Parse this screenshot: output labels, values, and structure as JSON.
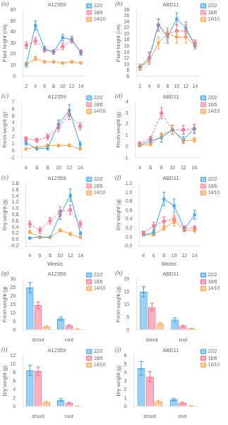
{
  "chart_data": [
    {
      "type": "line",
      "panel_label": "(a)",
      "title": "A12359",
      "ylabel": "Plant height (cm)",
      "x": [
        2,
        4,
        6,
        8,
        10,
        12,
        14
      ],
      "xlim": [
        1.2,
        14.8
      ],
      "xticks": [
        2,
        4,
        6,
        8,
        10,
        12,
        14
      ],
      "ylim": [
        0,
        60
      ],
      "yticks": [
        0,
        10,
        20,
        30,
        40,
        50,
        60
      ],
      "series": [
        {
          "name": "22/2",
          "values": [
            10.5,
            46,
            25,
            22,
            35,
            33,
            21
          ],
          "errors": [
            2,
            4,
            2,
            2,
            3,
            3,
            2
          ],
          "marker": "square",
          "line_style": "solid"
        },
        {
          "name": "18/6",
          "values": [
            28,
            32,
            24,
            22,
            27,
            33,
            22
          ],
          "errors": [
            3,
            3,
            2,
            2,
            3,
            2,
            2
          ],
          "marker": "circle",
          "line_style": "dashed"
        },
        {
          "name": "14/10",
          "values": [
            11,
            16,
            13,
            13,
            12,
            13,
            12
          ],
          "errors": [
            1,
            2,
            1,
            1,
            1,
            1,
            1
          ],
          "marker": "square",
          "line_style": "solid"
        }
      ],
      "grid": false,
      "legend": "right"
    },
    {
      "type": "line",
      "panel_label": "(b)",
      "title": "ABD11",
      "ylabel": "Plant height (cm)",
      "x": [
        2,
        4,
        6,
        8,
        10,
        12,
        14
      ],
      "xlim": [
        1.2,
        14.8
      ],
      "xticks": [
        2,
        4,
        6,
        8,
        10,
        12,
        14
      ],
      "ylim": [
        6,
        28
      ],
      "yticks": [
        6,
        8,
        10,
        12,
        14,
        16,
        18,
        20,
        22,
        24,
        26,
        28
      ],
      "series": [
        {
          "name": "22/2",
          "values": [
            9,
            12,
            23,
            19,
            25,
            22,
            16
          ],
          "errors": [
            1,
            2,
            2,
            2,
            2,
            2,
            1
          ],
          "marker": "square",
          "line_style": "solid"
        },
        {
          "name": "18/6",
          "values": [
            9,
            12,
            23,
            20,
            21,
            21,
            17
          ],
          "errors": [
            1,
            2,
            2,
            2,
            2,
            2,
            1
          ],
          "marker": "circle",
          "line_style": "dashed"
        },
        {
          "name": "14/10",
          "values": [
            9,
            11,
            17,
            20,
            19,
            19,
            16
          ],
          "errors": [
            1,
            1,
            2,
            2,
            2,
            2,
            1
          ],
          "marker": "square",
          "line_style": "solid"
        }
      ],
      "grid": false,
      "legend": "right"
    },
    {
      "type": "line",
      "panel_label": "(c)",
      "title": "A12359",
      "ylabel": "Fresh weight (g)",
      "x": [
        4,
        6,
        8,
        10,
        12,
        14
      ],
      "xlim": [
        3.2,
        14.8
      ],
      "xticks": [
        4,
        6,
        8,
        10,
        12,
        14
      ],
      "ylim": [
        -1,
        7
      ],
      "yticks": [
        -1,
        0,
        1,
        2,
        3,
        4,
        5,
        6,
        7
      ],
      "series": [
        {
          "name": "22/2",
          "values": [
            1.1,
            0.3,
            0.4,
            3.8,
            5.8,
            0.9
          ],
          "errors": [
            0.3,
            0.2,
            0.3,
            0.6,
            0.8,
            0.4
          ],
          "marker": "square",
          "line_style": "solid"
        },
        {
          "name": "18/6",
          "values": [
            1.7,
            1.5,
            2.0,
            3.3,
            5.2,
            3.5
          ],
          "errors": [
            0.3,
            0.3,
            0.4,
            0.5,
            0.7,
            0.5
          ],
          "marker": "circle",
          "line_style": "dashed"
        },
        {
          "name": "14/10",
          "values": [
            0.25,
            0.5,
            0.75,
            0.75,
            0.75,
            0.25
          ],
          "errors": [
            0.1,
            0.1,
            0.2,
            0.2,
            0.2,
            0.1
          ],
          "marker": "square",
          "line_style": "solid"
        }
      ],
      "grid": false,
      "legend": "right"
    },
    {
      "type": "line",
      "panel_label": "(d)",
      "title": "ABD11",
      "ylabel": "Fresh weight (g)",
      "x": [
        4,
        6,
        8,
        10,
        12,
        14
      ],
      "xlim": [
        3.2,
        14.8
      ],
      "xticks": [
        4,
        6,
        8,
        10,
        12,
        14
      ],
      "ylim": [
        -1,
        4
      ],
      "yticks": [
        -1,
        0,
        1,
        2,
        3,
        4
      ],
      "series": [
        {
          "name": "22/2",
          "values": [
            0.1,
            0.5,
            0.8,
            1.5,
            0.6,
            1.6
          ],
          "errors": [
            0.1,
            0.2,
            0.4,
            0.4,
            0.3,
            0.4
          ],
          "marker": "square",
          "line_style": "solid"
        },
        {
          "name": "18/6",
          "values": [
            0.3,
            0.7,
            3.0,
            1.5,
            1.5,
            1.6
          ],
          "errors": [
            0.1,
            0.2,
            0.5,
            0.4,
            0.4,
            0.4
          ],
          "marker": "circle",
          "line_style": "dashed"
        },
        {
          "name": "14/10",
          "values": [
            0.1,
            0.2,
            1.0,
            1.5,
            0.5,
            0.6
          ],
          "errors": [
            0.05,
            0.1,
            0.2,
            0.4,
            0.2,
            0.2
          ],
          "marker": "square",
          "line_style": "solid"
        }
      ],
      "grid": false,
      "legend": "right"
    },
    {
      "type": "line",
      "panel_label": "(e)",
      "title": "A12359",
      "xlabel": "Weeks",
      "ylabel": "Dry weight (g)",
      "x": [
        4,
        6,
        8,
        10,
        12,
        14
      ],
      "xlim": [
        3.2,
        14.8
      ],
      "xticks": [
        4,
        6,
        8,
        10,
        12,
        14
      ],
      "ylim": [
        -0.2,
        1.8
      ],
      "yticks": [
        -0.2,
        {
          "value": 0,
          "label": "0.0"
        },
        0.2,
        0.4,
        0.6,
        0.8,
        {
          "value": 1,
          "label": "1.0"
        },
        1.2,
        1.4,
        1.6,
        1.8
      ],
      "series": [
        {
          "name": "22/2",
          "values": [
            0.05,
            0.08,
            0.08,
            0.8,
            1.42,
            0.2
          ],
          "errors": [
            0.02,
            0.02,
            0.03,
            0.15,
            0.2,
            0.05
          ],
          "marker": "square",
          "line_style": "solid"
        },
        {
          "name": "18/6",
          "values": [
            0.5,
            0.3,
            0.6,
            0.9,
            0.95,
            0.5
          ],
          "errors": [
            0.1,
            0.1,
            0.1,
            0.15,
            0.15,
            0.1
          ],
          "marker": "circle",
          "line_style": "dashed"
        },
        {
          "name": "14/10",
          "values": [
            0.25,
            0.07,
            0.07,
            0.3,
            0.18,
            0.07
          ],
          "errors": [
            0.05,
            0.02,
            0.02,
            0.05,
            0.05,
            0.02
          ],
          "marker": "square",
          "line_style": "solid"
        }
      ],
      "grid": false,
      "legend": "right"
    },
    {
      "type": "line",
      "panel_label": "(f)",
      "title": "ABD11",
      "xlabel": "Weeks",
      "ylabel": "Dry weight (g)",
      "x": [
        4,
        6,
        8,
        10,
        12,
        14
      ],
      "xlim": [
        3.2,
        14.8
      ],
      "xticks": [
        4,
        6,
        8,
        10,
        12,
        14
      ],
      "ylim": [
        -0.2,
        1.2
      ],
      "yticks": [
        -0.2,
        {
          "value": 0,
          "label": "0.0"
        },
        0.2,
        0.4,
        0.6,
        0.8,
        {
          "value": 1,
          "label": "1.0"
        },
        1.2
      ],
      "series": [
        {
          "name": "22/2",
          "values": [
            0.05,
            0.1,
            0.85,
            0.7,
            0.18,
            0.5
          ],
          "errors": [
            0.02,
            0.05,
            0.15,
            0.15,
            0.05,
            0.1
          ],
          "marker": "square",
          "line_style": "solid"
        },
        {
          "name": "18/6",
          "values": [
            0.1,
            0.25,
            0.35,
            0.4,
            0.2,
            0.2
          ],
          "errors": [
            0.03,
            0.08,
            0.1,
            0.1,
            0.05,
            0.05
          ],
          "marker": "circle",
          "line_style": "dashed"
        },
        {
          "name": "14/10",
          "values": [
            0.05,
            0.05,
            0.2,
            0.35,
            0.15,
            0.15
          ],
          "errors": [
            0.02,
            0.02,
            0.05,
            0.1,
            0.04,
            0.04
          ],
          "marker": "square",
          "line_style": "solid"
        }
      ],
      "grid": false,
      "legend": "right"
    },
    {
      "type": "bar",
      "panel_label": "(g)",
      "title": "A12359",
      "ylabel": "Fresh weight (g)",
      "categories": [
        "shoot",
        "root"
      ],
      "ylim": [
        0,
        30
      ],
      "yticks": [
        0,
        5,
        10,
        15,
        20,
        25,
        30
      ],
      "series": [
        {
          "name": "22/2",
          "values": [
            25.0,
            6.5
          ],
          "errors": [
            3.0,
            1.0
          ]
        },
        {
          "name": "18/6",
          "values": [
            14.5,
            2.5
          ],
          "errors": [
            2.0,
            0.5
          ]
        },
        {
          "name": "14/10",
          "values": [
            2.0,
            0.5
          ],
          "errors": [
            0.3,
            0.1
          ]
        }
      ],
      "grid": false,
      "legend": "right"
    },
    {
      "type": "bar",
      "panel_label": "(h)",
      "title": "ABD11",
      "ylabel": "Fresh weight (g)",
      "categories": [
        "shoot",
        "root"
      ],
      "ylim": [
        0,
        20
      ],
      "yticks": [
        0,
        5,
        10,
        15,
        20
      ],
      "series": [
        {
          "name": "22/2",
          "values": [
            15.0,
            4.0
          ],
          "errors": [
            2.0,
            0.8
          ]
        },
        {
          "name": "18/6",
          "values": [
            9.0,
            1.5
          ],
          "errors": [
            1.5,
            0.3
          ]
        },
        {
          "name": "14/10",
          "values": [
            2.5,
            0.5
          ],
          "errors": [
            0.4,
            0.1
          ]
        }
      ],
      "grid": false,
      "legend": "right"
    },
    {
      "type": "bar",
      "panel_label": "(i)",
      "title": "A12359",
      "ylabel": "Dry weight (g)",
      "categories": [
        "shoot",
        "root"
      ],
      "ylim": [
        0,
        12
      ],
      "yticks": [
        0,
        2,
        4,
        6,
        8,
        10,
        12
      ],
      "series": [
        {
          "name": "22/2",
          "values": [
            8.5,
            1.5
          ],
          "errors": [
            1.2,
            0.3
          ]
        },
        {
          "name": "18/6",
          "values": [
            8.3,
            0.8
          ],
          "errors": [
            1.0,
            0.15
          ]
        },
        {
          "name": "14/10",
          "values": [
            1.0,
            0.05
          ],
          "errors": [
            0.15,
            0.01
          ]
        }
      ],
      "grid": false,
      "legend": "right"
    },
    {
      "type": "bar",
      "panel_label": "(j)",
      "title": "ABD11",
      "ylabel": "Dry weight (g)",
      "categories": [
        "shoot",
        "root"
      ],
      "ylim": [
        0,
        6
      ],
      "yticks": [
        0,
        1,
        2,
        3,
        4,
        5,
        6
      ],
      "series": [
        {
          "name": "22/2",
          "values": [
            4.5,
            0.8
          ],
          "errors": [
            0.8,
            0.15
          ]
        },
        {
          "name": "18/6",
          "values": [
            3.5,
            0.4
          ],
          "errors": [
            0.6,
            0.08
          ]
        },
        {
          "name": "14/10",
          "values": [
            0.6,
            0.05
          ],
          "errors": [
            0.1,
            0.01
          ]
        }
      ],
      "grid": false,
      "legend": "right"
    }
  ]
}
